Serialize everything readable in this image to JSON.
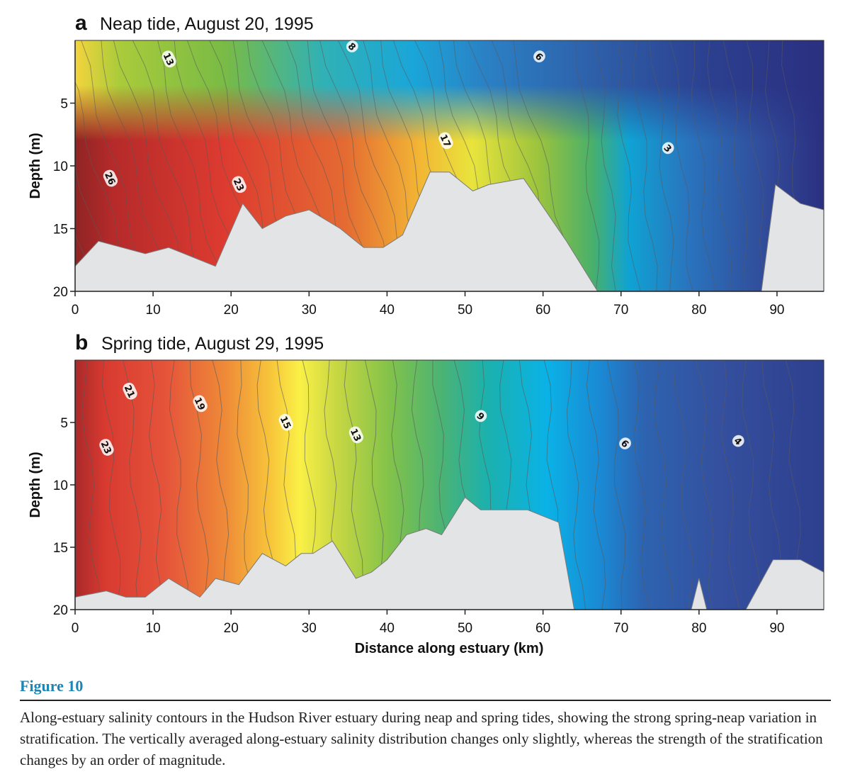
{
  "figure": {
    "label": "Figure 10",
    "caption": "Along-estuary salinity contours in the Hudson River estuary during neap and spring tides, showing the strong spring-neap variation in stratification. The vertically averaged along-estuary salinity distribution changes only slightly, whereas the strength of the stratification changes by an order of magnitude."
  },
  "chart_data": [
    {
      "type": "heatmap",
      "panel_letter": "a",
      "title": "Neap tide, August 20, 1995",
      "xlabel": "",
      "ylabel": "Depth (m)",
      "xlim": [
        0,
        96
      ],
      "ylim": [
        20,
        0
      ],
      "x_ticks": [
        "0",
        "10",
        "20",
        "30",
        "40",
        "50",
        "60",
        "70",
        "80",
        "90"
      ],
      "y_ticks": [
        "5",
        "10",
        "15",
        "20"
      ],
      "contour_labels": [
        {
          "value": "13",
          "x": 12,
          "y": 1.5
        },
        {
          "value": "8",
          "x": 35.5,
          "y": 0.5
        },
        {
          "value": "6",
          "x": 59.5,
          "y": 1.3
        },
        {
          "value": "26",
          "x": 4.5,
          "y": 11
        },
        {
          "value": "23",
          "x": 21,
          "y": 11.5
        },
        {
          "value": "17",
          "x": 47.5,
          "y": 8
        },
        {
          "value": "3",
          "x": 76,
          "y": 8.6
        }
      ],
      "bottom_depth": {
        "x": [
          0,
          3,
          9,
          12,
          18,
          21.5,
          24,
          27,
          30,
          34,
          37,
          39.5,
          42,
          45.5,
          48,
          51,
          53,
          57.5,
          63,
          67,
          70,
          88,
          89.8,
          93,
          96
        ],
        "depth": [
          18,
          16,
          17,
          16.5,
          18,
          13,
          15,
          14,
          13.5,
          15,
          16.5,
          16.5,
          15.5,
          10.5,
          10.5,
          12,
          11.5,
          11,
          16,
          20,
          20,
          20,
          11.5,
          13,
          13.5
        ]
      }
    },
    {
      "type": "heatmap",
      "panel_letter": "b",
      "title": "Spring tide, August 29, 1995",
      "xlabel": "Distance along estuary (km)",
      "ylabel": "Depth (m)",
      "xlim": [
        0,
        96
      ],
      "ylim": [
        20,
        0
      ],
      "x_ticks": [
        "0",
        "10",
        "20",
        "30",
        "40",
        "50",
        "60",
        "70",
        "80",
        "90"
      ],
      "y_ticks": [
        "5",
        "10",
        "15",
        "20"
      ],
      "contour_labels": [
        {
          "value": "21",
          "x": 7,
          "y": 2.5
        },
        {
          "value": "19",
          "x": 16,
          "y": 3.5
        },
        {
          "value": "23",
          "x": 4,
          "y": 7
        },
        {
          "value": "15",
          "x": 27,
          "y": 5
        },
        {
          "value": "13",
          "x": 36,
          "y": 6
        },
        {
          "value": "9",
          "x": 52,
          "y": 4.5
        },
        {
          "value": "6",
          "x": 70.5,
          "y": 6.7
        },
        {
          "value": "4",
          "x": 85,
          "y": 6.5
        }
      ],
      "bottom_depth": {
        "x": [
          0,
          4,
          6.5,
          9,
          12,
          16,
          18,
          21,
          24,
          27,
          29,
          30.5,
          33,
          36,
          38,
          40,
          42.5,
          45,
          47,
          50,
          52,
          56,
          58,
          62,
          64,
          67.5,
          68,
          72,
          79,
          80,
          81,
          86,
          89.5,
          93,
          96
        ],
        "depth": [
          19,
          18.5,
          19,
          19,
          17.5,
          19,
          17.5,
          18,
          15.5,
          16.5,
          15.5,
          15.5,
          14.5,
          17.5,
          17,
          16,
          14,
          13.5,
          14,
          11,
          12,
          12,
          12,
          13,
          20,
          20,
          20,
          20,
          20,
          17.5,
          20,
          20,
          16,
          16,
          17
        ]
      }
    }
  ]
}
